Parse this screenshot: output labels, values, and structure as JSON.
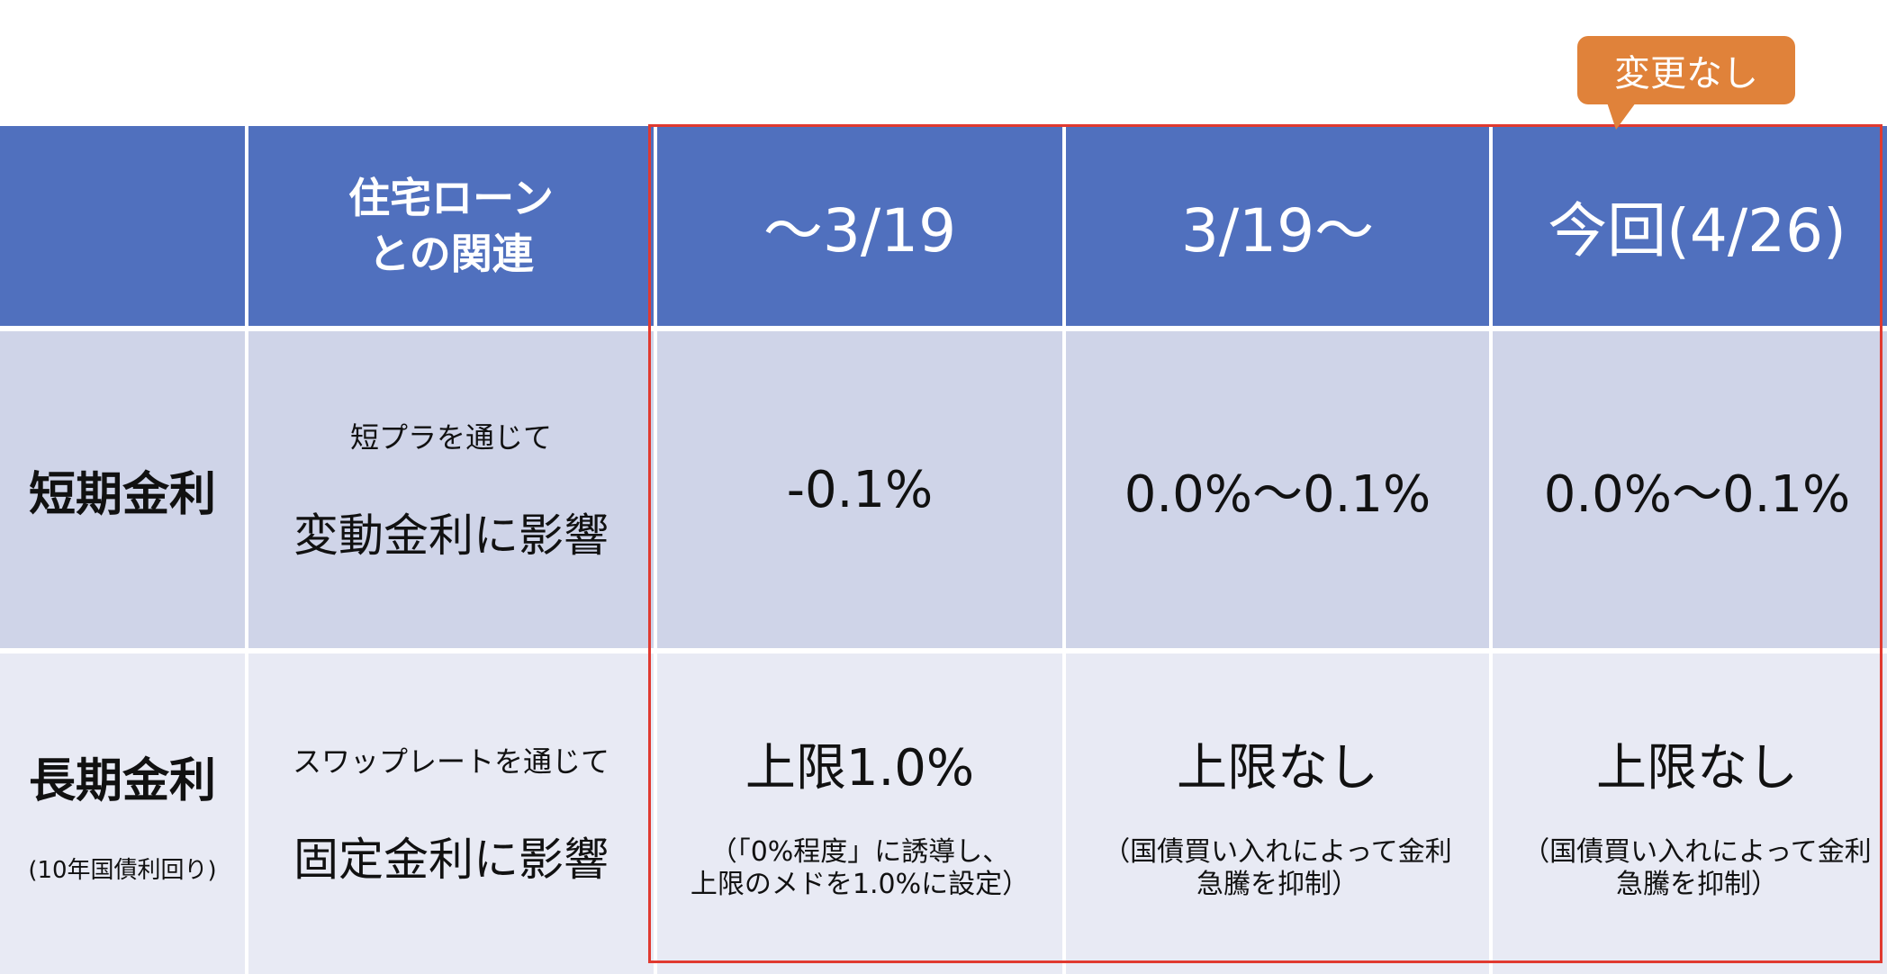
{
  "header": {
    "relation_line1": "住宅ローン",
    "relation_line2": "との関連",
    "periods": [
      "〜3/19",
      "3/19〜",
      "今回(4/26)"
    ]
  },
  "rows": [
    {
      "name": "短期金利",
      "sub": "",
      "relation_small": "短プラを通じて",
      "relation_big": "変動金利に影響",
      "values": [
        {
          "value": "-0.1%",
          "note_line1": "",
          "note_line2": ""
        },
        {
          "value": "0.0%〜0.1%",
          "note_line1": "",
          "note_line2": ""
        },
        {
          "value": "0.0%〜0.1%",
          "note_line1": "",
          "note_line2": ""
        }
      ]
    },
    {
      "name": "長期金利",
      "sub": "(10年国債利回り)",
      "relation_small": "スワップレートを通じて",
      "relation_big": "固定金利に影響",
      "values": [
        {
          "value": "上限1.0%",
          "note_line1": "（「0%程度」に誘導し、",
          "note_line2": "上限のメドを1.0%に設定）"
        },
        {
          "value": "上限なし",
          "note_line1": "（国債買い入れによって金利",
          "note_line2": "急騰を抑制）"
        },
        {
          "value": "上限なし",
          "note_line1": "（国債買い入れによって金利",
          "note_line2": "急騰を抑制）"
        }
      ]
    }
  ],
  "callout": "変更なし",
  "colors": {
    "header_bg": "#5070BE",
    "row1_bg": "#CFD4E8",
    "row2_bg": "#E8EAF4",
    "highlight_border": "#E03A30",
    "callout_bg": "#E0823A"
  }
}
